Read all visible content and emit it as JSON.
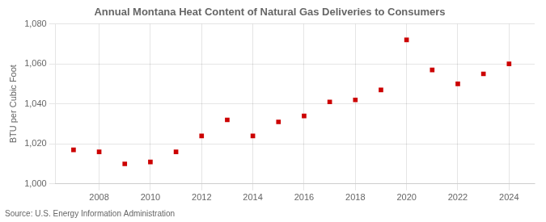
{
  "chart_data": {
    "type": "scatter",
    "title": "Annual Montana Heat Content of Natural Gas Deliveries to Consumers",
    "ylabel": "BTU per Cubic Foot",
    "annotations": [
      "Source: U.S. Energy Information Administration"
    ],
    "x": [
      2007,
      2008,
      2009,
      2010,
      2011,
      2012,
      2013,
      2014,
      2015,
      2016,
      2017,
      2018,
      2019,
      2020,
      2021,
      2022,
      2023,
      2024
    ],
    "values": [
      1017,
      1016,
      1010,
      1011,
      1016,
      1024,
      1032,
      1024,
      1031,
      1034,
      1041,
      1042,
      1047,
      1072,
      1057,
      1050,
      1055,
      1060
    ],
    "color": "#cc0000",
    "marker": "square",
    "xlim": [
      2006.3,
      2025.0
    ],
    "xticks": [
      2008,
      2010,
      2012,
      2014,
      2016,
      2018,
      2020,
      2022,
      2024
    ],
    "ylim": [
      1000,
      1080
    ],
    "yticks": [
      {
        "value": 1000,
        "label": "1,000"
      },
      {
        "value": 1020,
        "label": "1,020"
      },
      {
        "value": 1040,
        "label": "1,040"
      },
      {
        "value": 1060,
        "label": "1,060"
      },
      {
        "value": 1080,
        "label": "1,080"
      }
    ],
    "grid": true
  }
}
